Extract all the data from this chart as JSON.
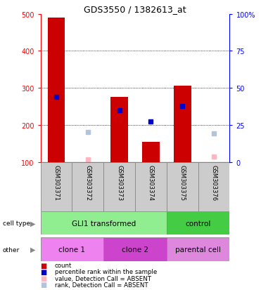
{
  "title": "GDS3550 / 1382613_at",
  "samples": [
    "GSM303371",
    "GSM303372",
    "GSM303373",
    "GSM303374",
    "GSM303375",
    "GSM303376"
  ],
  "bar_values": [
    490,
    null,
    275,
    155,
    307,
    null
  ],
  "blue_square_values": [
    275,
    null,
    240,
    210,
    252,
    null
  ],
  "light_pink_values": [
    null,
    107,
    null,
    null,
    null,
    115
  ],
  "light_blue_values": [
    null,
    182,
    null,
    null,
    null,
    178
  ],
  "ymin": 100,
  "ymax": 500,
  "yticks_left": [
    100,
    200,
    300,
    400,
    500
  ],
  "grid_values": [
    200,
    300,
    400
  ],
  "right_tick_positions": [
    100,
    200,
    300,
    400,
    500
  ],
  "right_tick_labels": [
    "0",
    "25",
    "50",
    "75",
    "100%"
  ],
  "cell_type_green_light": "#90ee90",
  "cell_type_green_dark": "#44cc44",
  "clone1_color": "#ee82ee",
  "clone2_color": "#cc44cc",
  "parental_color": "#dd88dd",
  "bar_color": "#cc0000",
  "blue_color": "#0000cc",
  "pink_color": "#ffb6c1",
  "lightblue_color": "#b0c4de",
  "sample_bg_color": "#cccccc",
  "figsize": [
    3.71,
    4.14
  ],
  "dpi": 100
}
